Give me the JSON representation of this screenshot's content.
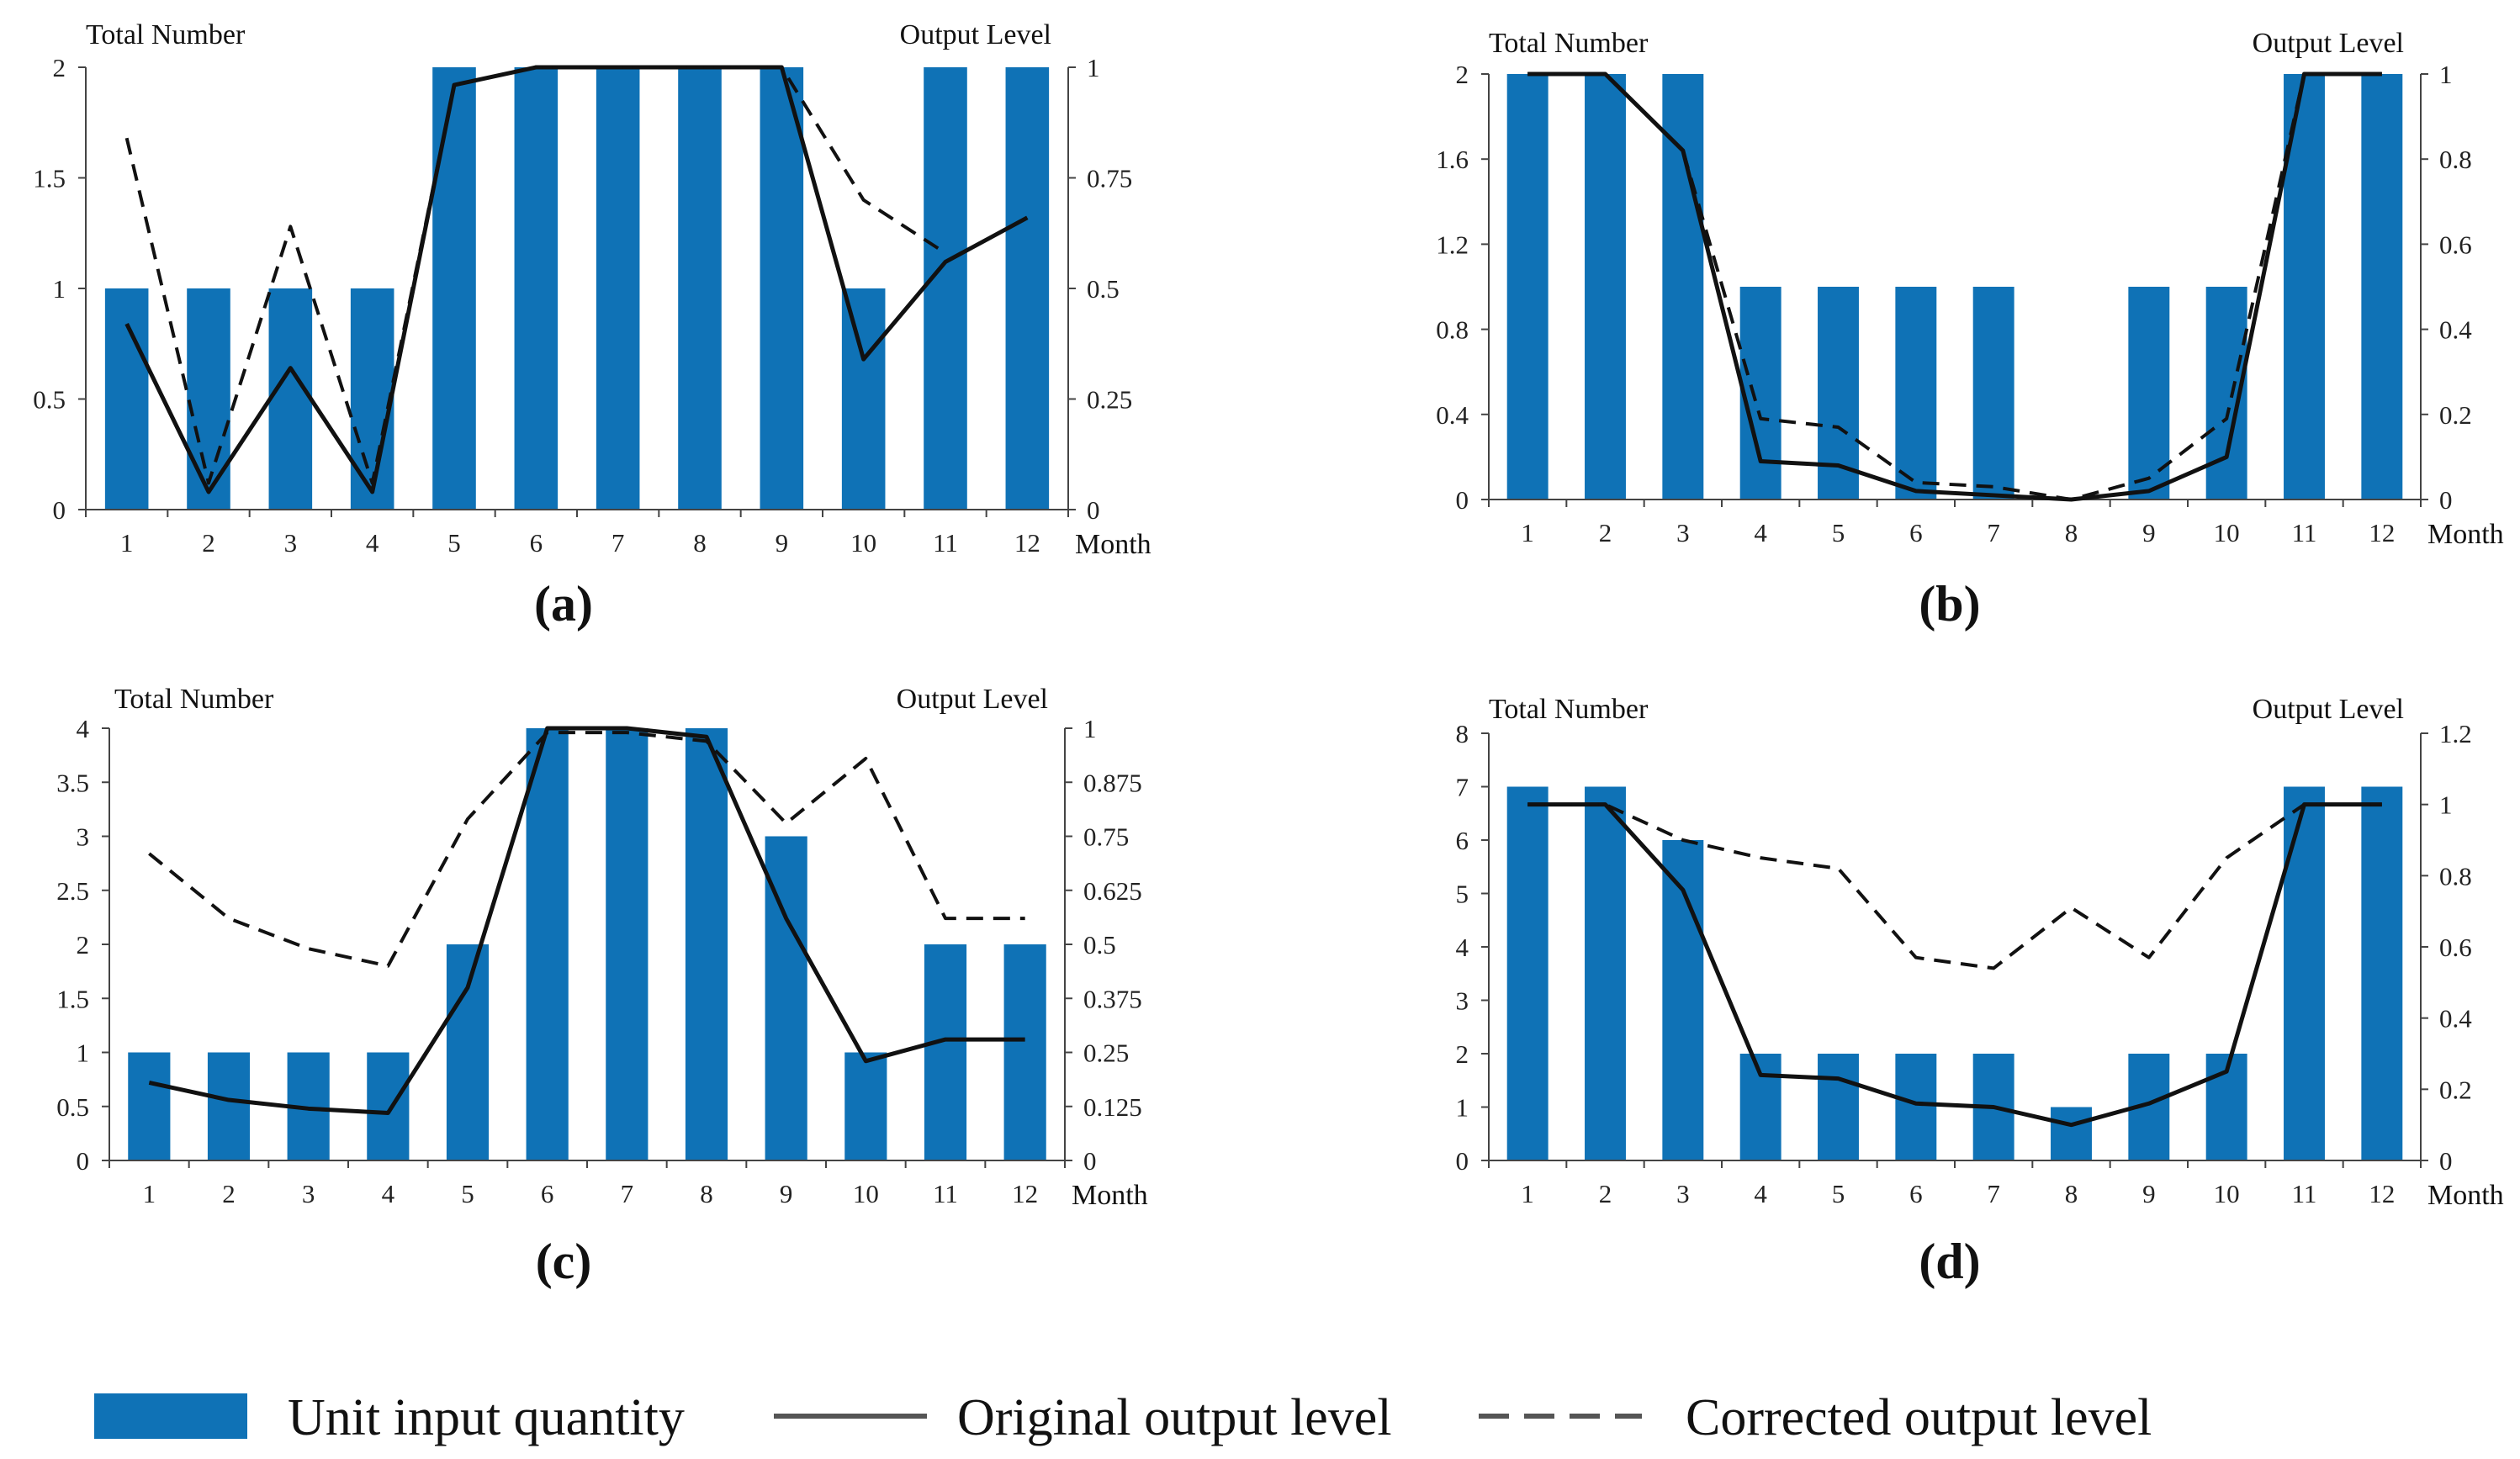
{
  "figure": {
    "legend": {
      "bar_label": "Unit input quantity",
      "original_label": "Original output level",
      "corrected_label": "Corrected output level"
    },
    "colors": {
      "bar": "#0f72b6",
      "original_line": "#111111",
      "corrected_line": "#111111",
      "axis": "#444444"
    }
  },
  "chart_data": [
    {
      "type": "bar",
      "panel_label": "(a)",
      "xlabel": "Month",
      "ylabel_left": "Total Number",
      "ylabel_right": "Output Level",
      "categories": [
        "1",
        "2",
        "3",
        "4",
        "5",
        "6",
        "7",
        "8",
        "9",
        "10",
        "11",
        "12"
      ],
      "ylim_left": [
        0,
        2
      ],
      "ylim_right": [
        0,
        1
      ],
      "yticks_left": [
        "0",
        "0.5",
        "1",
        "1.5",
        "2"
      ],
      "yticks_right": [
        "0",
        "0.25",
        "0.5",
        "0.75",
        "1"
      ],
      "series": [
        {
          "name": "Unit input quantity",
          "axis": "left",
          "kind": "bar",
          "values": [
            1,
            1,
            1,
            1,
            2,
            2,
            2,
            2,
            2,
            1,
            2,
            2
          ]
        },
        {
          "name": "Original output level",
          "axis": "right",
          "kind": "line",
          "values": [
            0.42,
            0.04,
            0.32,
            0.04,
            0.96,
            1,
            1,
            1,
            1,
            0.34,
            0.56,
            0.66
          ]
        },
        {
          "name": "Corrected output level",
          "axis": "right",
          "kind": "dashed",
          "values": [
            0.84,
            0.06,
            0.64,
            0.06,
            0.96,
            1,
            1,
            1,
            1,
            0.7,
            0.58,
            null
          ]
        }
      ]
    },
    {
      "type": "bar",
      "panel_label": "(b)",
      "xlabel": "Month",
      "ylabel_left": "Total Number",
      "ylabel_right": "Output Level",
      "categories": [
        "1",
        "2",
        "3",
        "4",
        "5",
        "6",
        "7",
        "8",
        "9",
        "10",
        "11",
        "12"
      ],
      "ylim_left": [
        0,
        2
      ],
      "ylim_right": [
        0,
        1
      ],
      "yticks_left": [
        "0",
        "0.4",
        "0.8",
        "1.2",
        "1.6",
        "2"
      ],
      "yticks_right": [
        "0",
        "0.2",
        "0.4",
        "0.6",
        "0.8",
        "1"
      ],
      "series": [
        {
          "name": "Unit input quantity",
          "axis": "left",
          "kind": "bar",
          "values": [
            2,
            2,
            2,
            1,
            1,
            1,
            1,
            0,
            1,
            1,
            2,
            2
          ]
        },
        {
          "name": "Original output level",
          "axis": "right",
          "kind": "line",
          "values": [
            1,
            1,
            0.82,
            0.09,
            0.08,
            0.02,
            0.01,
            0,
            0.02,
            0.1,
            1,
            1
          ]
        },
        {
          "name": "Corrected output level",
          "axis": "right",
          "kind": "dashed",
          "values": [
            1,
            1,
            0.82,
            0.19,
            0.17,
            0.04,
            0.03,
            0,
            0.05,
            0.19,
            1,
            1
          ]
        }
      ]
    },
    {
      "type": "bar",
      "panel_label": "(c)",
      "xlabel": "Month",
      "ylabel_left": "Total Number",
      "ylabel_right": "Output Level",
      "categories": [
        "1",
        "2",
        "3",
        "4",
        "5",
        "6",
        "7",
        "8",
        "9",
        "10",
        "11",
        "12"
      ],
      "ylim_left": [
        0,
        4
      ],
      "ylim_right": [
        0,
        1
      ],
      "yticks_left": [
        "0",
        "0.5",
        "1",
        "1.5",
        "2",
        "2.5",
        "3",
        "3.5",
        "4"
      ],
      "yticks_right": [
        "0",
        "0.125",
        "0.25",
        "0.375",
        "0.5",
        "0.625",
        "0.75",
        "0.875",
        "1"
      ],
      "series": [
        {
          "name": "Unit input quantity",
          "axis": "left",
          "kind": "bar",
          "values": [
            1,
            1,
            1,
            1,
            2,
            4,
            4,
            4,
            3,
            1,
            2,
            2
          ]
        },
        {
          "name": "Original output level",
          "axis": "right",
          "kind": "line",
          "values": [
            0.18,
            0.14,
            0.12,
            0.11,
            0.4,
            1,
            1,
            0.98,
            0.56,
            0.23,
            0.28,
            0.28
          ]
        },
        {
          "name": "Corrected output level",
          "axis": "right",
          "kind": "dashed",
          "values": [
            0.71,
            0.56,
            0.49,
            0.45,
            0.79,
            0.99,
            0.99,
            0.97,
            0.78,
            0.93,
            0.56,
            0.56
          ]
        }
      ]
    },
    {
      "type": "bar",
      "panel_label": "(d)",
      "xlabel": "Month",
      "ylabel_left": "Total Number",
      "ylabel_right": "Output Level",
      "categories": [
        "1",
        "2",
        "3",
        "4",
        "5",
        "6",
        "7",
        "8",
        "9",
        "10",
        "11",
        "12"
      ],
      "ylim_left": [
        0,
        8
      ],
      "ylim_right": [
        0,
        1.2
      ],
      "yticks_left": [
        "0",
        "1",
        "2",
        "3",
        "4",
        "5",
        "6",
        "7",
        "8"
      ],
      "yticks_right": [
        "0",
        "0.2",
        "0.4",
        "0.6",
        "0.8",
        "1",
        "1.2"
      ],
      "series": [
        {
          "name": "Unit input quantity",
          "axis": "left",
          "kind": "bar",
          "values": [
            7,
            7,
            6,
            2,
            2,
            2,
            2,
            1,
            2,
            2,
            7,
            7
          ]
        },
        {
          "name": "Original output level",
          "axis": "right",
          "kind": "line",
          "values": [
            1,
            1,
            0.76,
            0.24,
            0.23,
            0.16,
            0.15,
            0.1,
            0.16,
            0.25,
            1,
            1
          ]
        },
        {
          "name": "Corrected output level",
          "axis": "right",
          "kind": "dashed",
          "values": [
            1,
            1,
            0.9,
            0.85,
            0.82,
            0.57,
            0.54,
            0.71,
            0.57,
            0.85,
            1,
            1
          ]
        }
      ]
    }
  ]
}
